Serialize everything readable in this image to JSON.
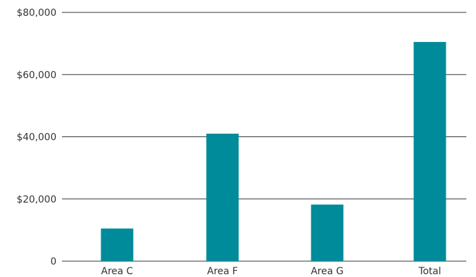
{
  "chart_data": {
    "type": "bar",
    "categories": [
      "Area C",
      "Area F",
      "Area G",
      "Total"
    ],
    "values": [
      10500,
      41000,
      18200,
      70500
    ],
    "title": "",
    "xlabel": "",
    "ylabel": "",
    "ylim": [
      0,
      80000
    ],
    "yticks": [
      0,
      20000,
      40000,
      60000,
      80000
    ],
    "ytick_labels": [
      "0",
      "$20,000",
      "$40,000",
      "$60,000",
      "$80,000"
    ],
    "grid": true,
    "bar_color": "#008b9a",
    "grid_color": "#333333",
    "text_color": "#333333"
  }
}
